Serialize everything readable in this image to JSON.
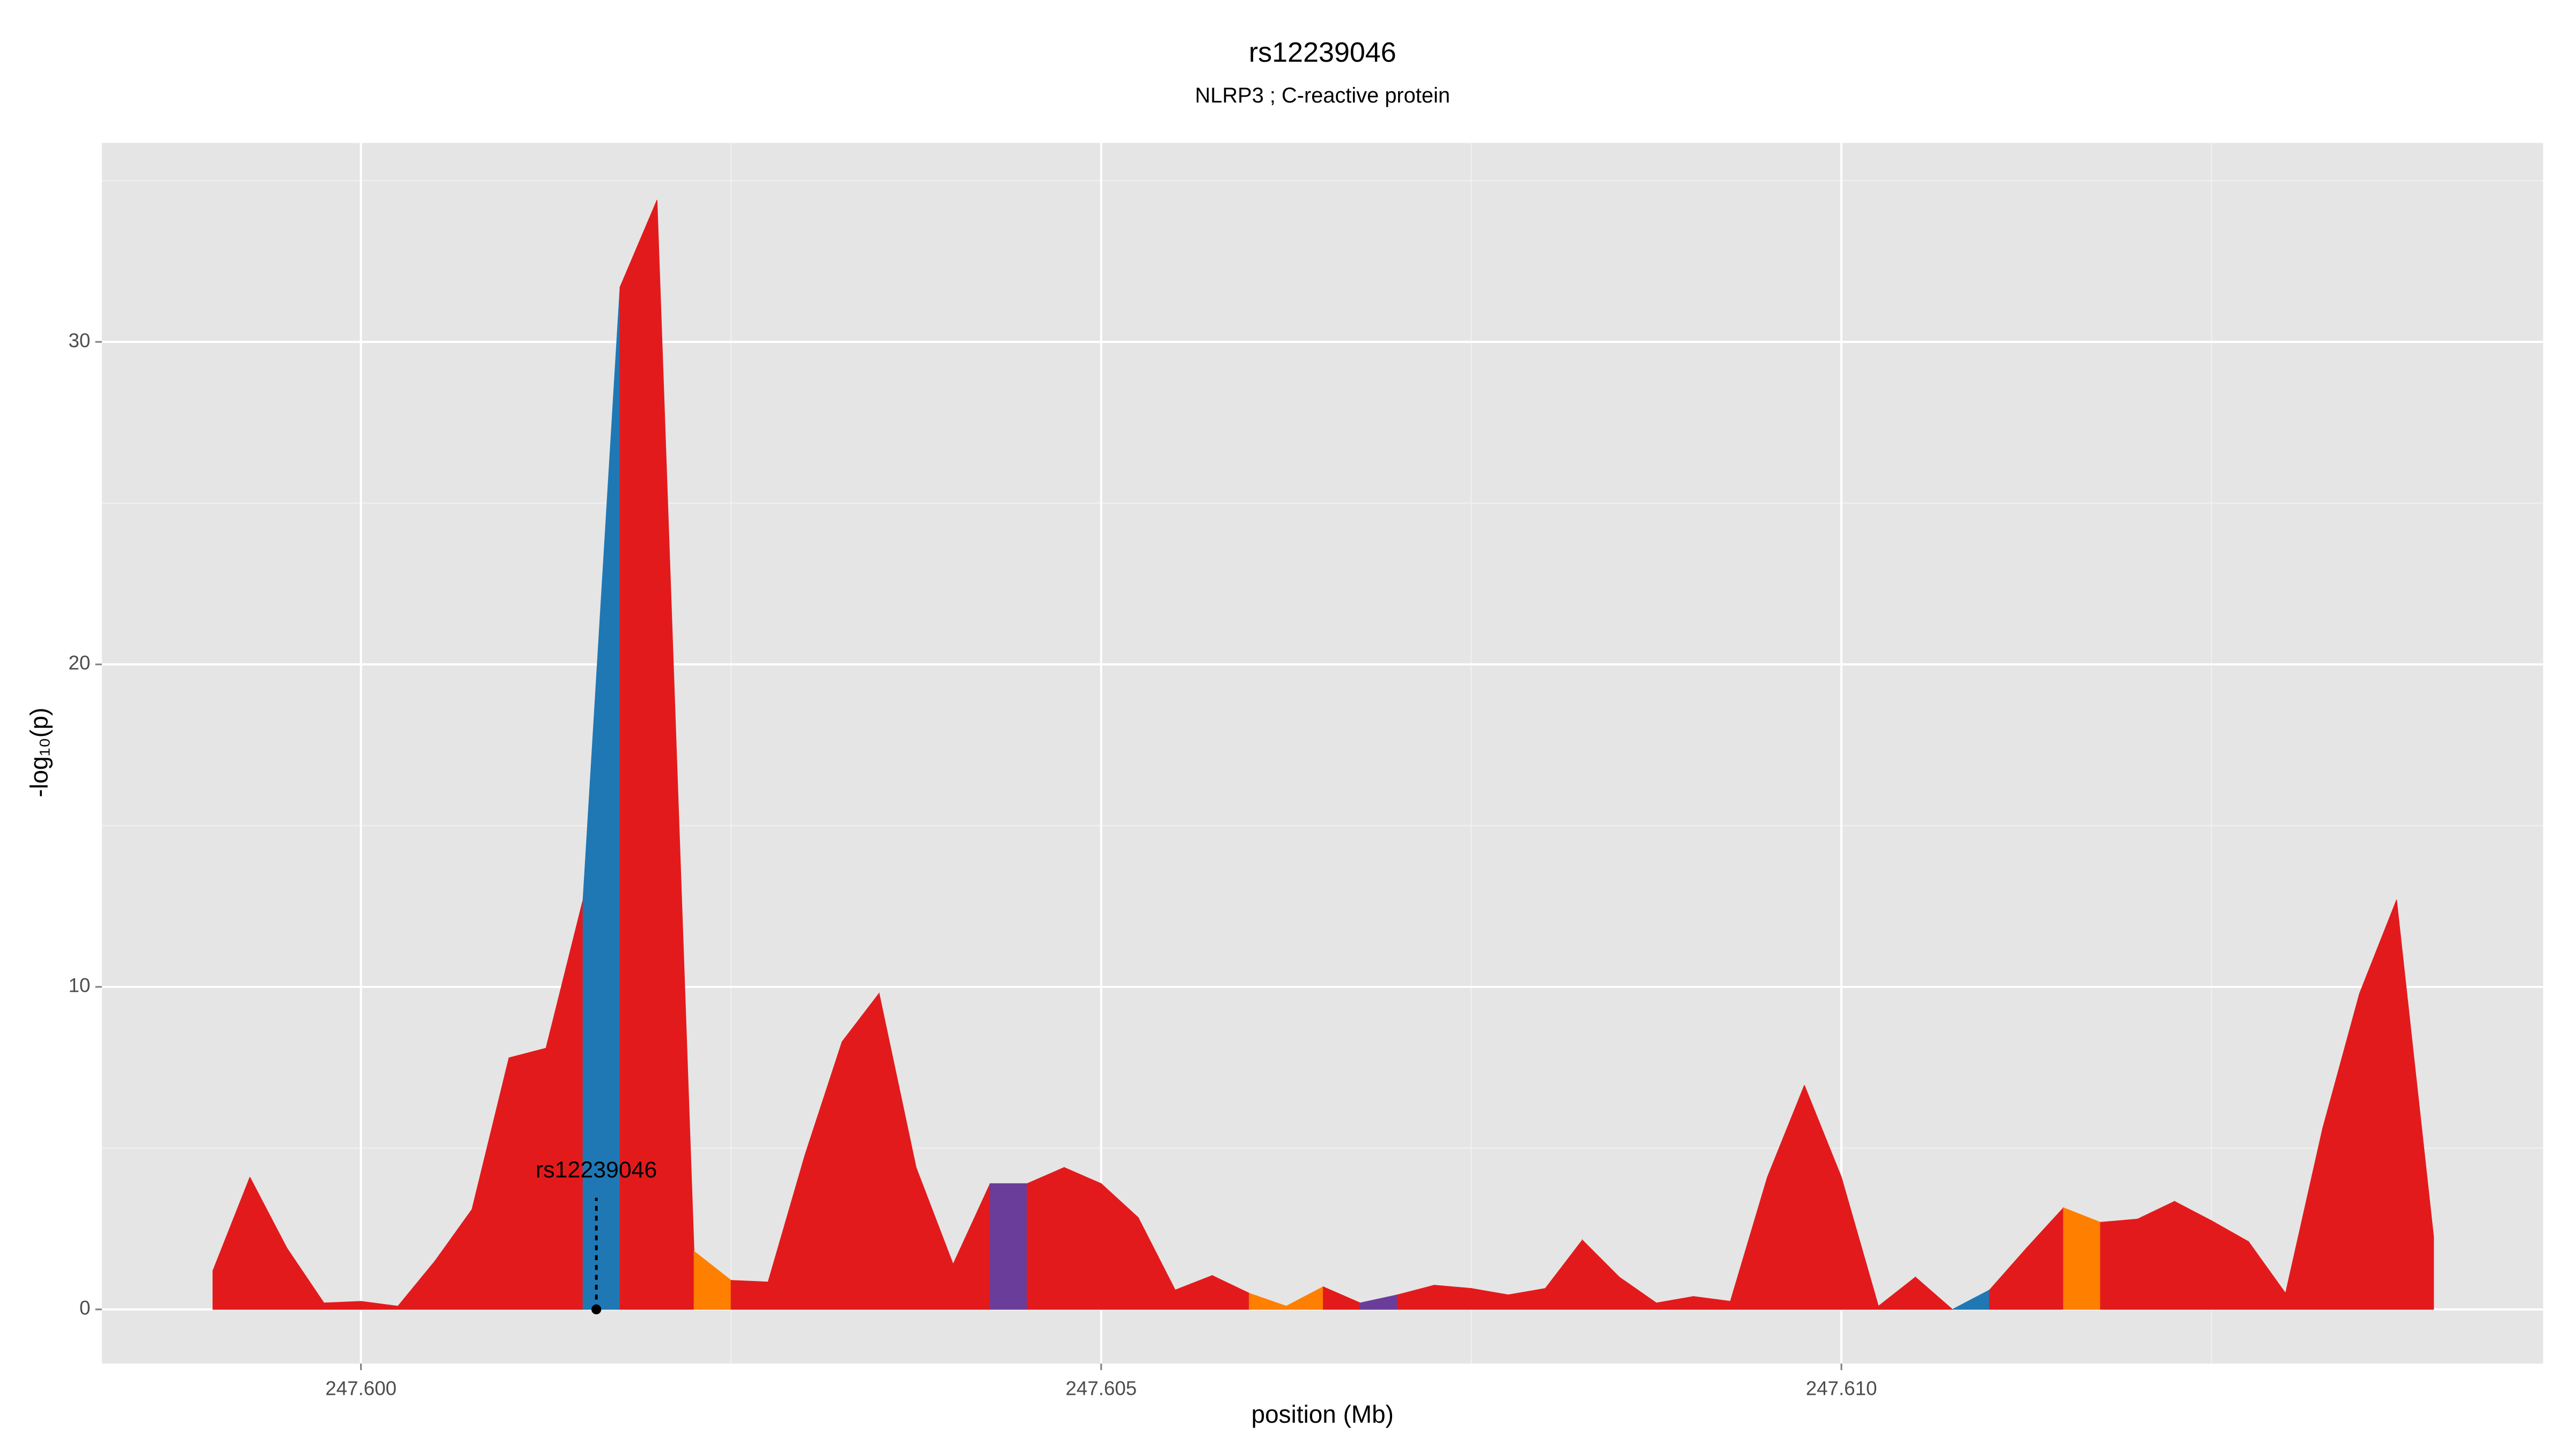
{
  "chart_data": {
    "type": "area",
    "title": "rs12239046",
    "subtitle": "NLRP3 ; C-reactive protein",
    "xlabel": "position (Mb)",
    "ylabel": "-log₁₀(p)",
    "x": [
      247.599,
      247.59925,
      247.5995,
      247.59975,
      247.6,
      247.60025,
      247.6005,
      247.60075,
      247.601,
      247.60125,
      247.6015,
      247.60175,
      247.602,
      247.60225,
      247.6025,
      247.60275,
      247.603,
      247.60325,
      247.6035,
      247.60375,
      247.604,
      247.60425,
      247.6045,
      247.60475,
      247.605,
      247.60525,
      247.6055,
      247.60575,
      247.606,
      247.60625,
      247.6065,
      247.60675,
      247.607,
      247.60725,
      247.6075,
      247.60775,
      247.608,
      247.60825,
      247.6085,
      247.60875,
      247.609,
      247.60925,
      247.6095,
      247.60975,
      247.61,
      247.61025,
      247.6105,
      247.61075,
      247.611,
      247.61125,
      247.6115,
      247.61175,
      247.612,
      247.61225,
      247.6125,
      247.61275,
      247.613,
      247.61325,
      247.6135,
      247.61375,
      247.614
    ],
    "values": [
      1.2,
      4.1,
      1.9,
      0.2,
      0.25,
      0.1,
      1.5,
      3.1,
      7.8,
      8.1,
      12.7,
      31.7,
      34.4,
      1.8,
      0.9,
      0.85,
      4.8,
      8.3,
      9.8,
      4.4,
      1.4,
      3.9,
      3.9,
      4.4,
      3.9,
      2.85,
      0.6,
      1.05,
      0.5,
      0.1,
      0.7,
      0.2,
      0.45,
      0.75,
      0.65,
      0.45,
      0.65,
      2.15,
      1.0,
      0.2,
      0.4,
      0.25,
      4.1,
      6.95,
      4.1,
      0.1,
      1.0,
      0.0,
      0.6,
      1.9,
      3.15,
      2.7,
      2.8,
      3.35,
      2.75,
      2.1,
      0.5,
      5.6,
      9.8,
      12.7,
      2.25
    ],
    "segment_colors": [
      "#e31a1c",
      "#e31a1c",
      "#e31a1c",
      "#e31a1c",
      "#e31a1c",
      "#e31a1c",
      "#e31a1c",
      "#e31a1c",
      "#e31a1c",
      "#e31a1c",
      "#1f78b4",
      "#e31a1c",
      "#e31a1c",
      "#ff7f00",
      "#e31a1c",
      "#e31a1c",
      "#e31a1c",
      "#e31a1c",
      "#e31a1c",
      "#e31a1c",
      "#e31a1c",
      "#6a3d9a",
      "#e31a1c",
      "#e31a1c",
      "#e31a1c",
      "#e31a1c",
      "#e31a1c",
      "#e31a1c",
      "#ff7f00",
      "#ff7f00",
      "#e31a1c",
      "#6a3d9a",
      "#e31a1c",
      "#e31a1c",
      "#e31a1c",
      "#e31a1c",
      "#e31a1c",
      "#e31a1c",
      "#e31a1c",
      "#e31a1c",
      "#e31a1c",
      "#e31a1c",
      "#e31a1c",
      "#e31a1c",
      "#e31a1c",
      "#e31a1c",
      "#e31a1c",
      "#1f78b4",
      "#e31a1c",
      "#e31a1c",
      "#ff7f00",
      "#e31a1c",
      "#e31a1c",
      "#e31a1c",
      "#e31a1c",
      "#e31a1c",
      "#e31a1c",
      "#e31a1c",
      "#e31a1c",
      "#e31a1c"
    ],
    "annotation": {
      "text": "rs12239046",
      "x": 247.60159
    },
    "xlim": [
      247.59825,
      247.61474
    ],
    "ylim": [
      -1.68,
      36.17
    ],
    "xticks": [
      {
        "value": 247.6,
        "label": "247.600"
      },
      {
        "value": 247.605,
        "label": "247.605"
      },
      {
        "value": 247.61,
        "label": "247.610"
      }
    ],
    "yticks": [
      0,
      10,
      20,
      30
    ],
    "x_minor_ticks": [
      247.6025,
      247.6075,
      247.6125
    ],
    "y_minor_ticks": [
      5,
      15,
      25,
      35
    ],
    "grid": true
  }
}
